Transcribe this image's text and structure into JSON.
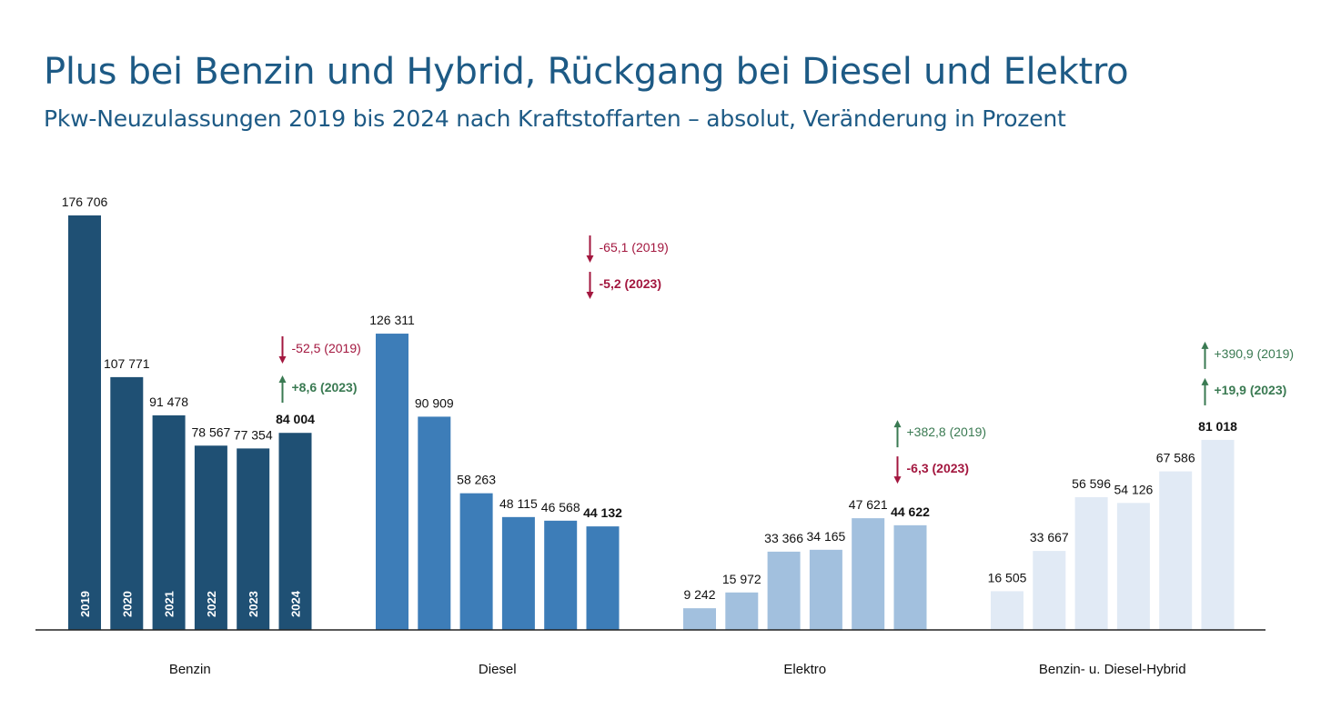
{
  "title": "Plus bei Benzin und Hybrid, Rückgang bei Diesel und Elektro",
  "subtitle": "Pkw-Neuzulassungen 2019 bis 2024 nach Kraftstoffarten – absolut, Veränderung in Prozent",
  "colors": {
    "title": "#1d5a85",
    "benzin": "#1f5074",
    "diesel": "#3d7db8",
    "elektro": "#a2c0de",
    "hybrid": "#e1eaf5",
    "increase": "#3a7a52",
    "decrease": "#a3173f",
    "axis": "#222222"
  },
  "chart_data": {
    "type": "bar",
    "years": [
      "2019",
      "2020",
      "2021",
      "2022",
      "2023",
      "2024"
    ],
    "groups": [
      {
        "name": "Benzin",
        "color_key": "benzin",
        "values": [
          176706,
          107771,
          91478,
          78567,
          77354,
          84004
        ],
        "value_labels": [
          "176 706",
          "107 771",
          "91 478",
          "78 567",
          "77 354",
          "84 004"
        ],
        "show_year_labels": true,
        "changes": [
          {
            "text": "-52,5 (2019)",
            "direction": "down",
            "bold": false
          },
          {
            "text": "+8,6 (2023)",
            "direction": "up",
            "bold": true
          }
        ]
      },
      {
        "name": "Diesel",
        "color_key": "diesel",
        "values": [
          126311,
          90909,
          58263,
          48115,
          46568,
          44132
        ],
        "value_labels": [
          "126 311",
          "90 909",
          "58 263",
          "48 115",
          "46 568",
          "44 132"
        ],
        "show_year_labels": false,
        "changes": [
          {
            "text": "-65,1 (2019)",
            "direction": "down",
            "bold": false
          },
          {
            "text": "-5,2 (2023)",
            "direction": "down",
            "bold": true
          }
        ]
      },
      {
        "name": "Elektro",
        "color_key": "elektro",
        "values": [
          9242,
          15972,
          33366,
          34165,
          47621,
          44622
        ],
        "value_labels": [
          "9 242",
          "15 972",
          "33 366",
          "34 165",
          "47 621",
          "44 622"
        ],
        "show_year_labels": false,
        "changes": [
          {
            "text": "+382,8 (2019)",
            "direction": "up",
            "bold": false
          },
          {
            "text": "-6,3 (2023)",
            "direction": "down",
            "bold": true
          }
        ]
      },
      {
        "name": "Benzin- u. Diesel-Hybrid",
        "color_key": "hybrid",
        "values": [
          16505,
          33667,
          56596,
          54126,
          67586,
          81018
        ],
        "value_labels": [
          "16 505",
          "33 667",
          "56 596",
          "54 126",
          "67 586",
          "81 018"
        ],
        "show_year_labels": false,
        "changes": [
          {
            "text": "+390,9 (2019)",
            "direction": "up",
            "bold": false
          },
          {
            "text": "+19,9 (2023)",
            "direction": "up",
            "bold": true
          }
        ]
      }
    ],
    "ylim": [
      0,
      176706
    ],
    "grid": false,
    "legend": "none"
  }
}
